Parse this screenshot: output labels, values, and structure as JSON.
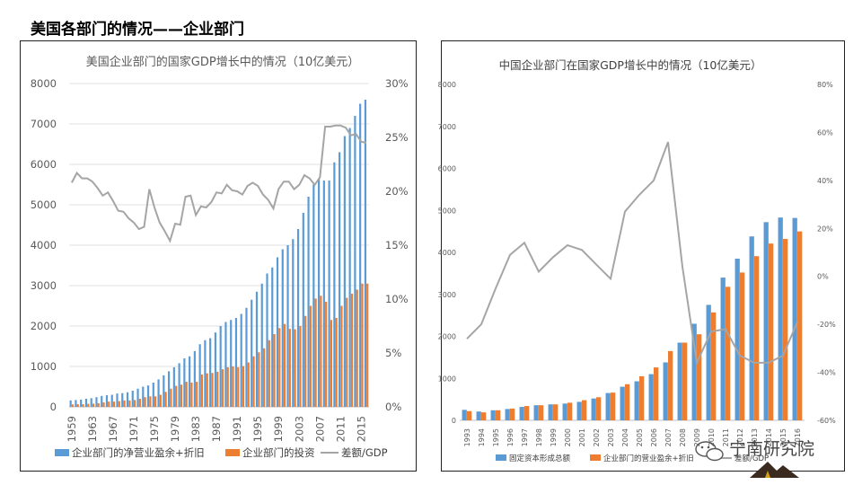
{
  "page_title": "美国各部门的情况——企业部门",
  "watermark": "宁南研究院",
  "colors": {
    "blue": "#5b9bd5",
    "orange": "#ed7d31",
    "gray": "#a5a5a5"
  },
  "chart_data": [
    {
      "type": "bar+line",
      "title": "美国企业部门的国家GDP增长中的情况（10亿美元）",
      "years": [
        1959,
        1960,
        1961,
        1962,
        1963,
        1964,
        1965,
        1966,
        1967,
        1968,
        1969,
        1970,
        1971,
        1972,
        1973,
        1974,
        1975,
        1976,
        1977,
        1978,
        1979,
        1980,
        1981,
        1982,
        1983,
        1984,
        1985,
        1986,
        1987,
        1988,
        1989,
        1990,
        1991,
        1992,
        1993,
        1994,
        1995,
        1996,
        1997,
        1998,
        1999,
        2000,
        2001,
        2002,
        2003,
        2004,
        2005,
        2006,
        2007,
        2008,
        2009,
        2010,
        2011,
        2012,
        2013,
        2014,
        2015,
        2016
      ],
      "tick_labels": [
        "1959",
        "1963",
        "1967",
        "1971",
        "1975",
        "1979",
        "1983",
        "1987",
        "1991",
        "1995",
        "1999",
        "2003",
        "2007",
        "2011",
        "2015"
      ],
      "ylim_left": [
        0,
        8000
      ],
      "yticks_left": [
        "0",
        "1000",
        "2000",
        "3000",
        "4000",
        "5000",
        "6000",
        "7000",
        "8000"
      ],
      "ylim_right": [
        0,
        30
      ],
      "yticks_right": [
        "0%",
        "5%",
        "10%",
        "15%",
        "20%",
        "25%",
        "30%"
      ],
      "series": [
        {
          "name": "企业部门的净营业盈余+折旧",
          "kind": "bar",
          "color": "#5b9bd5",
          "values": [
            160,
            170,
            180,
            200,
            215,
            240,
            270,
            290,
            300,
            330,
            340,
            360,
            400,
            450,
            500,
            530,
            600,
            680,
            780,
            880,
            980,
            1080,
            1200,
            1250,
            1380,
            1550,
            1650,
            1700,
            1840,
            2000,
            2100,
            2150,
            2200,
            2300,
            2450,
            2650,
            2850,
            3050,
            3300,
            3450,
            3700,
            3900,
            4000,
            4150,
            4400,
            4800,
            5200,
            5500,
            5650,
            5600,
            5600,
            6050,
            6300,
            6700,
            6900,
            7200,
            7500,
            7600
          ]
        },
        {
          "name": "企业部门的投资",
          "kind": "bar",
          "color": "#ed7d31",
          "values": [
            60,
            65,
            65,
            75,
            80,
            90,
            110,
            130,
            130,
            140,
            160,
            160,
            170,
            200,
            240,
            260,
            260,
            300,
            370,
            450,
            520,
            550,
            620,
            600,
            620,
            800,
            830,
            840,
            870,
            930,
            980,
            1000,
            980,
            1010,
            1100,
            1250,
            1350,
            1450,
            1650,
            1800,
            1950,
            2050,
            1930,
            1920,
            2000,
            2250,
            2500,
            2680,
            2750,
            2600,
            2150,
            2200,
            2500,
            2700,
            2800,
            2900,
            3050,
            3050
          ]
        },
        {
          "name": "差额/GDP",
          "kind": "line",
          "axis": "right",
          "color": "#a5a5a5",
          "values": [
            20.8,
            21.7,
            21.2,
            21.2,
            20.9,
            20.3,
            19.6,
            19.9,
            19.1,
            18.2,
            18.1,
            17.5,
            17.1,
            16.5,
            16.7,
            20.2,
            18.5,
            17.1,
            16.3,
            15.4,
            17.0,
            16.9,
            19.5,
            19.6,
            17.8,
            18.6,
            18.5,
            19.0,
            19.9,
            19.8,
            20.6,
            20.1,
            20.0,
            19.7,
            20.5,
            20.8,
            20.5,
            19.7,
            19.2,
            18.4,
            20.2,
            20.9,
            20.9,
            20.2,
            20.6,
            21.5,
            21.2,
            20.6,
            21.3,
            26.0,
            26.0,
            26.1,
            26.1,
            25.9,
            25.2,
            25.3,
            24.6,
            24.5
          ]
        }
      ],
      "legend": [
        "企业部门的净营业盈余+折旧",
        "企业部门的投资",
        "差额/GDP"
      ]
    },
    {
      "type": "bar+line",
      "title": "中国企业部门在国家GDP增长中的情况（10亿美元）",
      "years": [
        "1993",
        "1994",
        "1995",
        "1996",
        "1997",
        "1998",
        "1999",
        "2000",
        "2001",
        "2002",
        "2003",
        "2004",
        "2005",
        "2006",
        "2007",
        "2008",
        "2009",
        "2010",
        "2011",
        "2012",
        "2013",
        "2014",
        "2015",
        "2016"
      ],
      "ylim_left": [
        0,
        8000
      ],
      "yticks_left": [
        "0",
        "1000",
        "2000",
        "3000",
        "4000",
        "5000",
        "6000",
        "7000",
        "8000"
      ],
      "ylim_right": [
        -60,
        80
      ],
      "yticks_right": [
        "-60%",
        "-40%",
        "-20%",
        "0%",
        "20%",
        "40%",
        "60%",
        "80%"
      ],
      "series": [
        {
          "name": "固定资本形成总额",
          "kind": "bar",
          "color": "#5b9bd5",
          "values": [
            250,
            210,
            240,
            270,
            320,
            360,
            380,
            400,
            440,
            520,
            650,
            800,
            930,
            1100,
            1380,
            1850,
            2300,
            2750,
            3400,
            3850,
            4380,
            4720,
            4830,
            4820
          ]
        },
        {
          "name": "企业部门的营业盈余+折旧",
          "kind": "bar",
          "color": "#ed7d31",
          "values": [
            220,
            190,
            240,
            280,
            340,
            360,
            380,
            420,
            480,
            550,
            660,
            860,
            1050,
            1260,
            1650,
            1850,
            2050,
            2570,
            3180,
            3520,
            3910,
            4210,
            4320,
            4500
          ]
        },
        {
          "name": "差额/GDP",
          "kind": "line",
          "axis": "right",
          "color": "#a5a5a5",
          "values": [
            -26,
            -20,
            -5,
            9,
            14,
            2,
            8,
            13,
            11,
            5,
            -1,
            27,
            34,
            40,
            56,
            4,
            -36,
            -23,
            -22,
            -33,
            -36,
            -36,
            -33,
            -19
          ]
        }
      ],
      "legend": [
        "固定资本形成总额",
        "企业部门的营业盈余+折旧",
        "差额/GDP"
      ]
    }
  ]
}
